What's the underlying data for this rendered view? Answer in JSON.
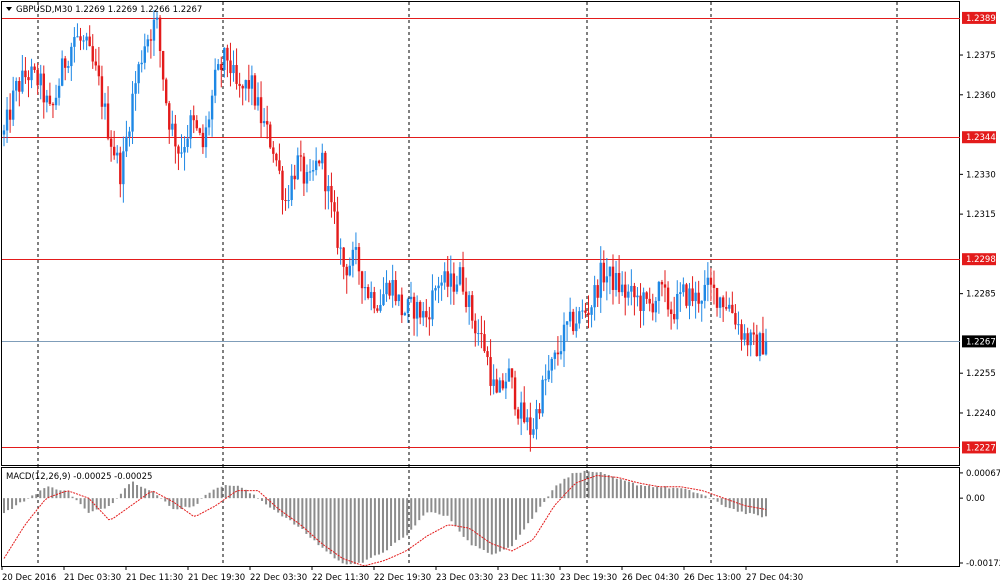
{
  "header": {
    "symbol_line": "GBPUSD,M30  1.2269 1.2269 1.2266 1.2267",
    "macd_line": "MACD(12,26,9) -0.00025 -0.00025"
  },
  "colors": {
    "bull": "#1e88e5",
    "bear": "#e31b1b",
    "level_line": "#e31b1b",
    "current_line": "#7f9db9",
    "grid": "#000000",
    "histogram": "#8c8c8c",
    "signal": "#e31b1b"
  },
  "chart_data": [
    {
      "type": "candlestick",
      "symbol": "GBPUSD",
      "timeframe": "M30",
      "ohlc_header": {
        "open": 1.2269,
        "high": 1.2269,
        "low": 1.2266,
        "close": 1.2267
      },
      "ylim": [
        1.222,
        1.2395
      ],
      "y_ticks": [
        "1.2375",
        "1.2360",
        "1.2330",
        "1.2315",
        "1.2285",
        "1.2255",
        "1.2240"
      ],
      "x_ticks": [
        "20 Dec 2016",
        "21 Dec 03:30",
        "21 Dec 11:30",
        "21 Dec 19:30",
        "22 Dec 03:30",
        "22 Dec 11:30",
        "22 Dec 19:30",
        "23 Dec 03:30",
        "23 Dec 11:30",
        "23 Dec 19:30",
        "26 Dec 04:30",
        "26 Dec 13:00",
        "27 Dec 04:30"
      ],
      "levels": [
        {
          "label": "1.2389",
          "value": 1.2389
        },
        {
          "label": "1.2344",
          "value": 1.2344
        },
        {
          "label": "1.2298",
          "value": 1.2298
        },
        {
          "label": "1.2227",
          "value": 1.2227
        }
      ],
      "current_price": {
        "label": "1.2267",
        "value": 1.2267
      },
      "path": [
        1.2345,
        1.2362,
        1.2368,
        1.2365,
        1.2352,
        1.237,
        1.2382,
        1.2378,
        1.2366,
        1.2345,
        1.233,
        1.236,
        1.238,
        1.2388,
        1.2352,
        1.2338,
        1.235,
        1.234,
        1.2365,
        1.2375,
        1.236,
        1.2365,
        1.235,
        1.234,
        1.232,
        1.2335,
        1.2325,
        1.2338,
        1.2315,
        1.2295,
        1.2298,
        1.2286,
        1.2282,
        1.229,
        1.2278,
        1.228,
        1.2276,
        1.229,
        1.2288,
        1.2292,
        1.2275,
        1.2265,
        1.2245,
        1.2255,
        1.224,
        1.2233,
        1.225,
        1.226,
        1.2272,
        1.2276,
        1.228,
        1.2293,
        1.229,
        1.2285,
        1.2283,
        1.228,
        1.2286,
        1.2278,
        1.2285,
        1.2283,
        1.2287,
        1.2284,
        1.228,
        1.227,
        1.2265,
        1.2267
      ],
      "n_candles": 250
    },
    {
      "type": "bar",
      "name": "MACD(12,26,9)",
      "main_value": -0.00025,
      "signal_value": -0.00025,
      "ylim": [
        -0.0018,
        0.0008
      ],
      "y_ticks": [
        "0.00067",
        "0.00",
        "-0.00172"
      ],
      "histogram_path": [
        -0.0004,
        -5e-05,
        0.0003,
        0.0002,
        -0.0004,
        -0.0002,
        0.00045,
        0.0002,
        -0.0003,
        -0.0002,
        0.0003,
        0.00035,
        0.0,
        -0.0004,
        -0.0008,
        -0.0013,
        -0.00175,
        -0.0017,
        -0.0014,
        -0.001,
        -0.00035,
        -0.0005,
        -0.0012,
        -0.0015,
        -0.00125,
        -0.0005,
        0.0003,
        0.0007,
        0.0007,
        0.0005,
        0.00035,
        0.0003,
        0.00025,
        0.0001,
        -0.0002,
        -0.0004,
        -0.0005
      ],
      "signal_path": [
        -0.0016,
        -0.0007,
        0.0,
        0.0002,
        0.0,
        -0.0006,
        -0.0002,
        0.0002,
        -0.0001,
        -0.0005,
        -0.0002,
        0.0002,
        0.0002,
        -0.0003,
        -0.0007,
        -0.0012,
        -0.0016,
        -0.0018,
        -0.00165,
        -0.0014,
        -0.001,
        -0.0007,
        -0.0008,
        -0.0012,
        -0.0014,
        -0.0011,
        -0.0002,
        0.0004,
        0.0006,
        0.00055,
        0.0004,
        0.0003,
        0.0003,
        0.0002,
        0.0,
        -0.0002,
        -0.0003
      ]
    }
  ]
}
